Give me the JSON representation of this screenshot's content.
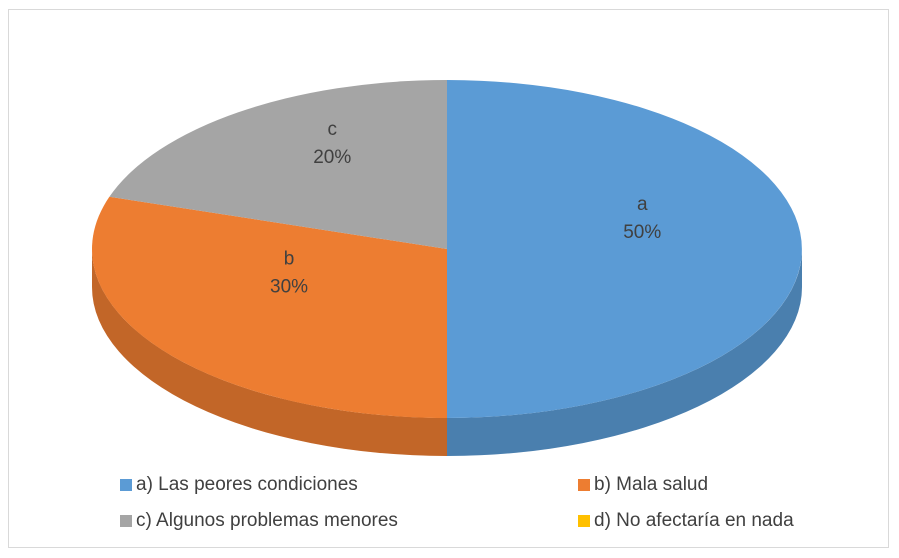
{
  "chart_data": {
    "type": "pie",
    "categories": [
      "a) Las peores condiciones",
      "b) Mala salud",
      "c) Algunos problemas menores",
      "d) No afectaría en nada"
    ],
    "labels": [
      "a",
      "b",
      "c",
      null
    ],
    "values": [
      50,
      30,
      20,
      0
    ],
    "value_labels": [
      "50%",
      "30%",
      "20%",
      null
    ],
    "colors": [
      "#5b9bd5",
      "#ed7d31",
      "#a5a5a5",
      "#ffc000"
    ],
    "legend": "bottom"
  }
}
